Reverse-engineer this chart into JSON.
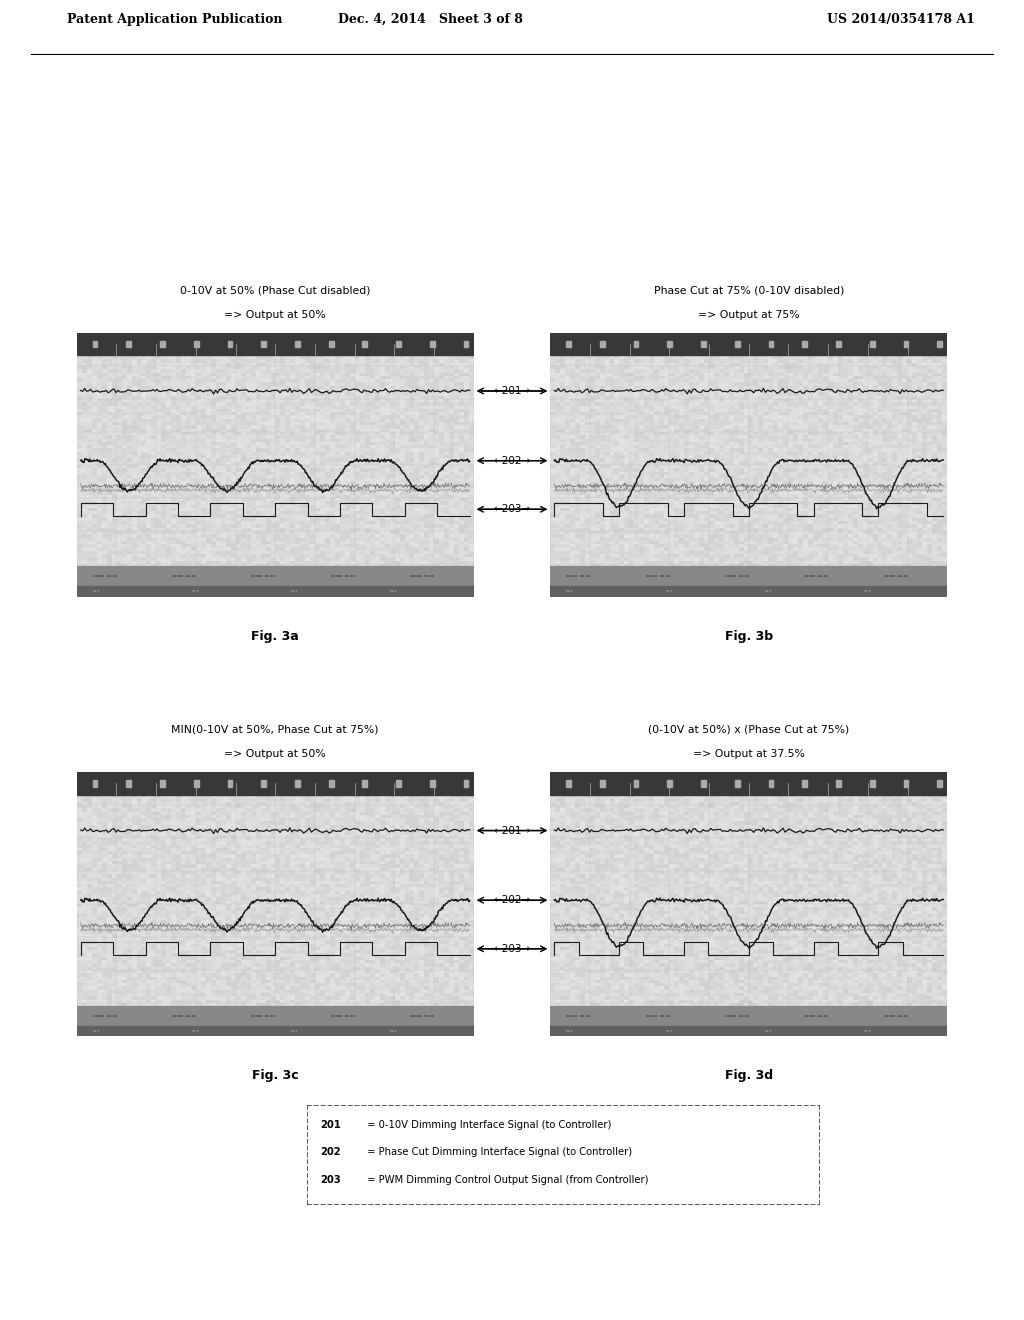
{
  "header_left": "Patent Application Publication",
  "header_mid": "Dec. 4, 2014   Sheet 3 of 8",
  "header_right": "US 2014/0354178 A1",
  "fig3a_title1": "0-10V at 50% (Phase Cut disabled)",
  "fig3a_title2": "=> Output at 50%",
  "fig3b_title1": "Phase Cut at 75% (0-10V disabled)",
  "fig3b_title2": "=> Output at 75%",
  "fig3c_title1": "MIN(0-10V at 50%, Phase Cut at 75%)",
  "fig3c_title2": "=> Output at 50%",
  "fig3d_title1": "(0-10V at 50%) x (Phase Cut at 75%)",
  "fig3d_title2": "=> Output at 37.5%",
  "fig3a_label": "Fig. 3a",
  "fig3b_label": "Fig. 3b",
  "fig3c_label": "Fig. 3c",
  "fig3d_label": "Fig. 3d",
  "legend_201_bold": "201",
  "legend_201_rest": " = 0-10V Dimming Interface Signal (to Controller)",
  "legend_202_bold": "202",
  "legend_202_rest": " = Phase Cut Dimming Interface Signal (to Controller)",
  "legend_203_bold": "203",
  "legend_203_rest": " = PWM Dimming Control Output Signal (from Controller)",
  "bg_color": "#ffffff",
  "scope_bg": "#c8c8c8",
  "top_bar_color": "#404040",
  "bottom_bar_color": "#888888",
  "bottom_bar2_color": "#666666",
  "grid_color": "#999999",
  "signal_color": "#1a1a1a",
  "arrow_color": "#000000",
  "label_color": "#1a1a1a"
}
